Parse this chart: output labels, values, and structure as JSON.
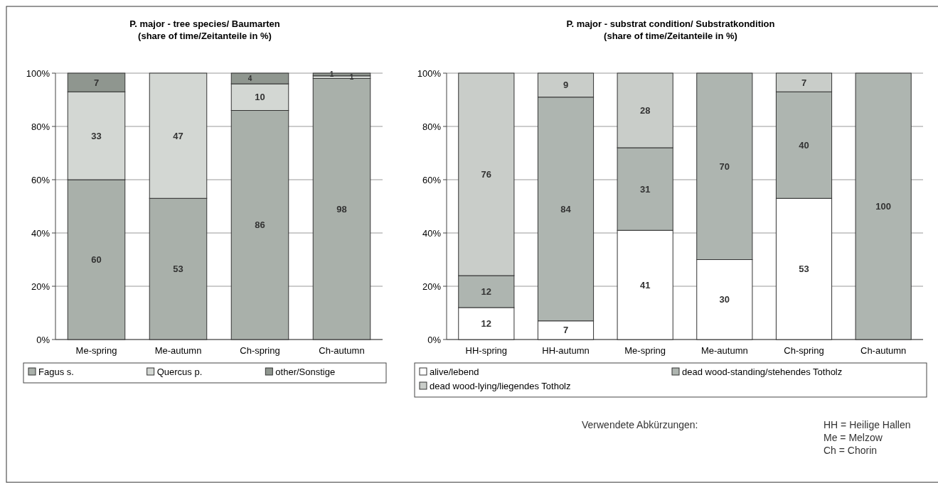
{
  "chart_data": [
    {
      "type": "bar",
      "title": "P. major - tree species/ Baumarten",
      "subtitle": "(share of time/Zeitanteile in %)",
      "categories": [
        "Me-spring",
        "Me-autumn",
        "Ch-spring",
        "Ch-autumn"
      ],
      "stacked": true,
      "series": [
        {
          "name": "Fagus s.",
          "color": "#a9b0aa",
          "values": [
            60,
            53,
            86,
            98
          ]
        },
        {
          "name": "Quercus p.",
          "color": "#d3d7d3",
          "values": [
            33,
            47,
            10,
            1
          ]
        },
        {
          "name": "other/Sonstige",
          "color": "#8f968f",
          "values": [
            7,
            null,
            4,
            1
          ]
        }
      ],
      "ylim": [
        0,
        100
      ],
      "yticks": [
        {
          "value": 0,
          "label": "0%"
        },
        {
          "value": 20,
          "label": "20%"
        },
        {
          "value": 40,
          "label": "40%"
        },
        {
          "value": 60,
          "label": "60%"
        },
        {
          "value": 80,
          "label": "80%"
        },
        {
          "value": 100,
          "label": "100%"
        }
      ],
      "grid": "y",
      "legend": "bottom",
      "data_labels": true
    },
    {
      "type": "bar",
      "title": "P. major - substrat condition/ Substratkondition",
      "subtitle": "(share of time/Zeitanteile in %)",
      "categories": [
        "HH-spring",
        "HH-autumn",
        "Me-spring",
        "Me-autumn",
        "Ch-spring",
        "Ch-autumn"
      ],
      "stacked": true,
      "series": [
        {
          "name": "alive/lebend",
          "color": "#ffffff",
          "values": [
            12,
            7,
            41,
            30,
            53,
            null
          ]
        },
        {
          "name": "dead wood-standing/stehendes Totholz",
          "color": "#aeb5b0",
          "values": [
            12,
            84,
            31,
            70,
            40,
            100
          ]
        },
        {
          "name": "dead wood-lying/liegendes Totholz",
          "color": "#c9cdc9",
          "values": [
            76,
            9,
            28,
            null,
            7,
            null
          ]
        }
      ],
      "ylim": [
        0,
        100
      ],
      "yticks": [
        {
          "value": 0,
          "label": "0%"
        },
        {
          "value": 20,
          "label": "20%"
        },
        {
          "value": 40,
          "label": "40%"
        },
        {
          "value": 60,
          "label": "60%"
        },
        {
          "value": 80,
          "label": "80%"
        },
        {
          "value": 100,
          "label": "100%"
        }
      ],
      "grid": "y",
      "legend": "bottom",
      "data_labels": true,
      "annotations": [
        "Verwendete Abkürzungen:",
        "HH = Heilige Hallen",
        "Me = Melzow",
        "Ch = Chorin"
      ]
    }
  ]
}
